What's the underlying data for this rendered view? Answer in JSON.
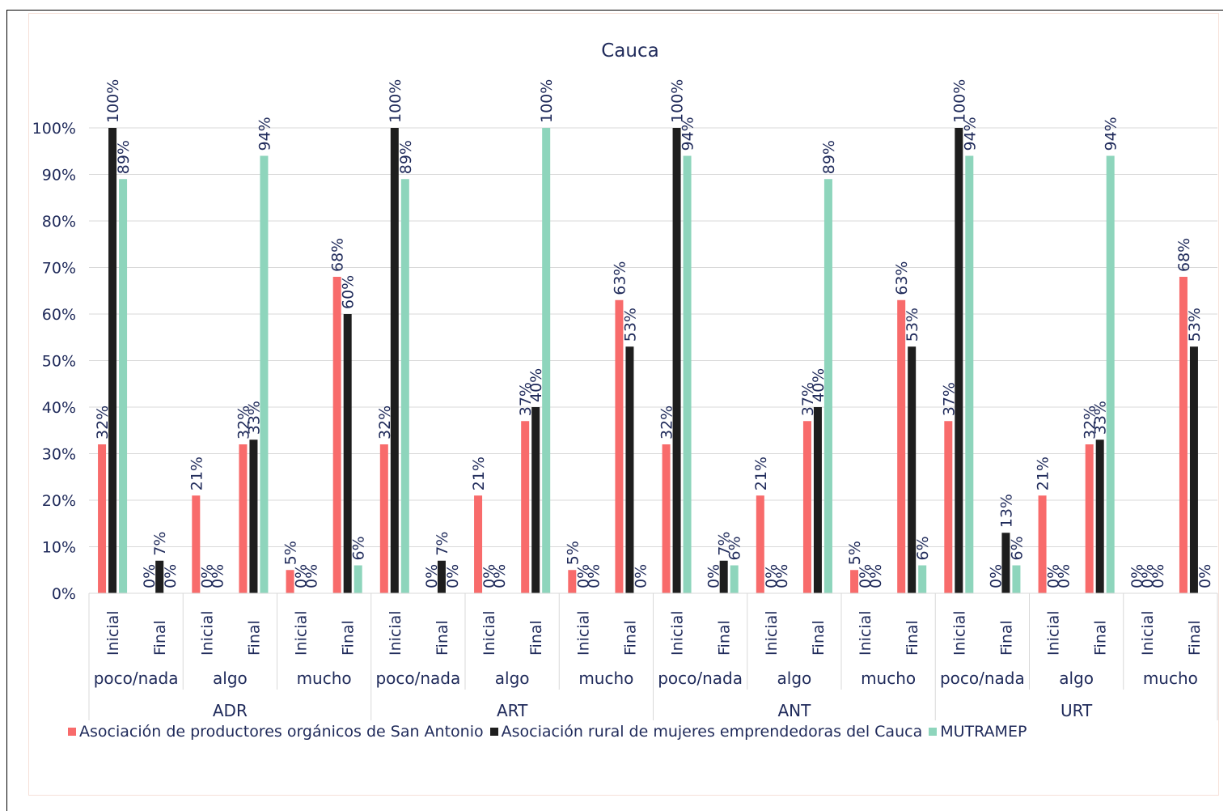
{
  "chart_data": {
    "type": "bar",
    "title": "Cauca",
    "ylim": [
      0,
      100
    ],
    "yticks": [
      "0%",
      "10%",
      "20%",
      "30%",
      "40%",
      "50%",
      "60%",
      "70%",
      "80%",
      "90%",
      "100%"
    ],
    "grid": true,
    "legend_position": "bottom",
    "groups": [
      "ADR",
      "ART",
      "ANT",
      "URT"
    ],
    "levels": [
      "poco/nada",
      "algo",
      "mucho"
    ],
    "stages": [
      "Inicial",
      "Final"
    ],
    "series": [
      {
        "name": "Asociación de productores orgánicos de San Antonio",
        "color": "#f86b6b",
        "values": [
          32,
          0,
          21,
          32,
          5,
          68,
          32,
          0,
          21,
          37,
          5,
          63,
          32,
          0,
          21,
          37,
          5,
          63,
          37,
          0,
          21,
          32,
          0,
          68
        ],
        "labels": [
          "32%",
          "0%",
          "21%",
          "32%",
          "5%",
          "68%",
          "32%",
          "0%",
          "21%",
          "37%",
          "5%",
          "63%",
          "32%",
          "0%",
          "21%",
          "37%",
          "5%",
          "63%",
          "37%",
          "0%",
          "21%",
          "32%",
          "0%",
          "68%"
        ]
      },
      {
        "name": "Asociación rural de mujeres emprendedoras del Cauca",
        "color": "#1e1e1e",
        "values": [
          100,
          7,
          0,
          33,
          0,
          60,
          100,
          7,
          0,
          40,
          0,
          53,
          100,
          7,
          0,
          40,
          0,
          53,
          100,
          13,
          0,
          33,
          0,
          53
        ],
        "labels": [
          "100%",
          "7%",
          "0%",
          "33%",
          "0%",
          "60%",
          "100%",
          "7%",
          "0%",
          "40%",
          "0%",
          "53%",
          "100%",
          "7%",
          "0%",
          "40%",
          "0%",
          "53%",
          "100%",
          "13%",
          "0%",
          "33%",
          "0%",
          "53%"
        ]
      },
      {
        "name": "MUTRAMEP",
        "color": "#8ed5bc",
        "values": [
          89,
          0,
          0,
          94,
          0,
          6,
          89,
          0,
          0,
          100,
          0,
          0,
          94,
          6,
          0,
          89,
          0,
          6,
          94,
          6,
          0,
          94,
          0,
          0
        ],
        "labels": [
          "89%",
          "0%",
          "0%",
          "94%",
          "0%",
          "6%",
          "89%",
          "0%",
          "0%",
          "100%",
          "0%",
          "0%",
          "94%",
          "6%",
          "0%",
          "89%",
          "0%",
          "6%",
          "94%",
          "6%",
          "0%",
          "94%",
          "0%",
          "0%"
        ]
      }
    ]
  }
}
